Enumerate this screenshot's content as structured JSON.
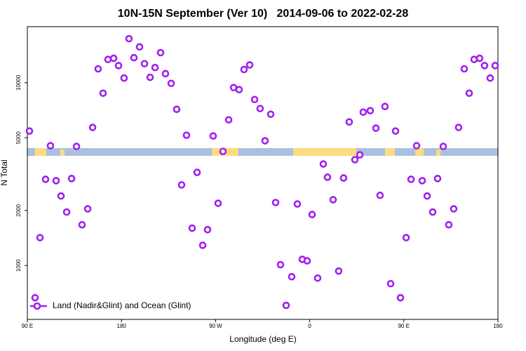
{
  "chart_data": {
    "type": "scatter",
    "title": "10N-15N September (Ver 10)   2014-09-06 to 2022-02-28",
    "xlabel": "Longitude (deg E)",
    "ylabel": "N Total",
    "log_y": true,
    "legend": "bottom-left",
    "xlim": [
      90,
      540
    ],
    "ylim": [
      507,
      20250
    ],
    "xticks": [
      {
        "value": 90,
        "label": "90 E"
      },
      {
        "value": 180,
        "label": "180"
      },
      {
        "value": 270,
        "label": "90 W"
      },
      {
        "value": 360,
        "label": "0"
      },
      {
        "value": 450,
        "label": "90 E"
      },
      {
        "value": 540,
        "label": "180"
      }
    ],
    "yticks": [
      1000,
      2000,
      5000,
      10000
    ],
    "series": [
      {
        "name": "Land (Nadir&Glint) and Ocean (Glint)",
        "color": "#a020f0",
        "x": [
          92.0,
          97.4,
          102.1,
          107.4,
          112.1,
          117.5,
          122.2,
          127.6,
          132.3,
          137.0,
          142.3,
          147.7,
          152.4,
          157.7,
          162.4,
          167.1,
          172.5,
          177.2,
          182.5,
          187.2,
          191.9,
          197.3,
          202.0,
          207.4,
          212.1,
          217.4,
          222.1,
          227.5,
          232.8,
          237.5,
          242.2,
          247.6,
          252.3,
          257.7,
          262.3,
          267.7,
          272.4,
          277.1,
          282.5,
          287.2,
          292.5,
          297.2,
          302.6,
          307.3,
          312.6,
          317.3,
          322.7,
          327.4,
          332.1,
          337.5,
          342.8,
          348.2,
          352.9,
          357.6,
          362.3,
          367.6,
          373.0,
          377.0,
          382.4,
          387.7,
          392.4,
          397.8,
          403.2,
          407.9,
          411.2,
          417.9,
          423.3,
          427.3,
          432.0,
          437.4,
          442.1,
          446.8,
          452.2,
          456.9,
          462.2,
          467.6,
          472.3,
          477.6,
          482.3,
          487.7,
          493.0,
          497.7,
          502.4,
          507.8,
          512.5,
          517.2,
          522.5,
          527.2,
          532.6,
          537.3
        ],
        "values": [
          5440,
          666,
          1420,
          2960,
          4520,
          2910,
          2400,
          1960,
          2990,
          4480,
          1670,
          2040,
          5690,
          11900,
          8760,
          13400,
          13600,
          12400,
          10600,
          17400,
          13700,
          15700,
          12700,
          10700,
          12100,
          14600,
          11200,
          9910,
          7150,
          2760,
          5160,
          1600,
          3230,
          1290,
          1570,
          5110,
          2190,
          4210,
          6260,
          9400,
          9160,
          11800,
          12500,
          8090,
          7220,
          4810,
          6720,
          2210,
          1010,
          605,
          868,
          2170,
          1080,
          1060,
          1900,
          853,
          3590,
          3040,
          2290,
          932,
          3010,
          6100,
          3790,
          4030,
          6900,
          7030,
          5640,
          2420,
          7410,
          795,
          5440,
          666,
          1420,
          2960,
          4520,
          2910,
          2400,
          1960,
          2990,
          4480,
          1670,
          2040,
          5690,
          11900,
          8760,
          13400,
          13600,
          12400,
          10600,
          12400
        ]
      }
    ]
  }
}
